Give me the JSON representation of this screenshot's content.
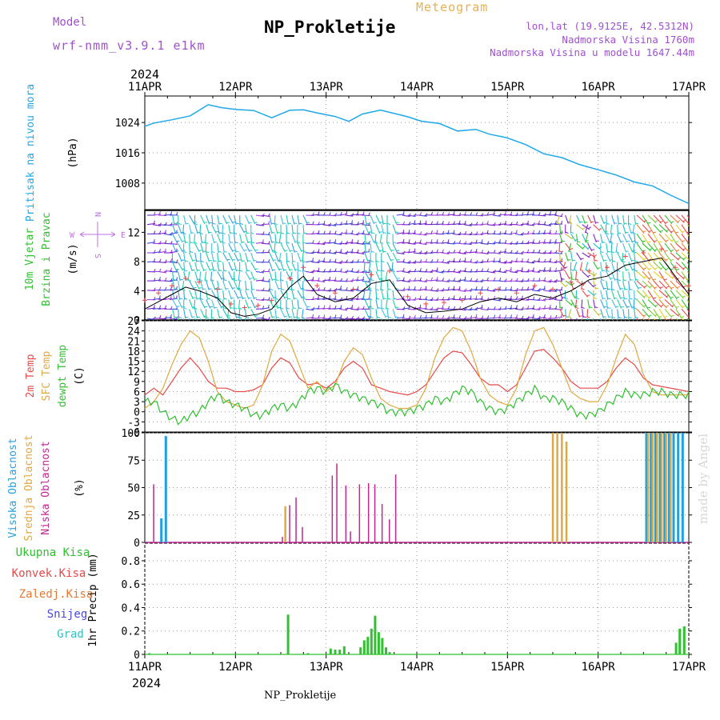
{
  "header": {
    "model_label": "Model",
    "model_name": "wrf-nmm_v3.9.1 e1km",
    "meteogram_label": "Meteogram",
    "station_title": "NP_Prokletije",
    "lonlat": "lon,lat (19.9125E, 42.5312N)",
    "elevation": "Nadmorska Visina 1760m",
    "model_elevation": "Nadmorska Visina u modelu 1647.44m"
  },
  "footer": {
    "station": "NP_Prokletije",
    "made_by": "made by Angel"
  },
  "colors": {
    "pressure": "#1fa8e8",
    "temp2m": "#e84848",
    "sfc_temp": "#e0a840",
    "dewpt": "#30c030",
    "high_cloud": "#20a0e0",
    "mid_cloud": "#e0a840",
    "low_cloud": "#c02890",
    "precip": "#30c030",
    "conv": "#e84848",
    "frz": "#e87830",
    "snow": "#4848e0",
    "grad": "#30c0c0",
    "wind_label": "#30c030",
    "compass": "#c070e0"
  },
  "chart_data": [
    {
      "type": "line",
      "panel": "pressure",
      "ylabel_left": "Pritisak na nivou mora",
      "ylabel_unit": "(hPa)",
      "yticks": [
        1008,
        1016,
        1024
      ],
      "ylim": [
        1001,
        1031
      ],
      "x_start": "2024-04-11T00:00",
      "x_end": "2024-04-17T00:00",
      "x": [
        0,
        0.1,
        0.3,
        0.5,
        0.7,
        0.85,
        1.0,
        1.2,
        1.4,
        1.6,
        1.75,
        1.9,
        2.1,
        2.25,
        2.4,
        2.6,
        2.8,
        2.9,
        3.05,
        3.25,
        3.45,
        3.65,
        3.8,
        4.0,
        4.2,
        4.4,
        4.6,
        4.8,
        5.0,
        5.2,
        5.4,
        5.6,
        5.8,
        6.0
      ],
      "y": [
        1023,
        1024,
        1024.5,
        1026,
        1028.5,
        1028,
        1027.5,
        1027,
        1025.5,
        1027,
        1027.5,
        1026.5,
        1025.5,
        1024.5,
        1026,
        1027.5,
        1026,
        1025.5,
        1024.5,
        1023.5,
        1022,
        1022,
        1021,
        1020,
        1018,
        1016,
        1014.5,
        1013,
        1011.5,
        1010,
        1008.5,
        1007,
        1005,
        1002.5
      ],
      "grid": true
    },
    {
      "type": "wind_barbs",
      "panel": "wind",
      "ylabel_left": "10m Vjetar Brzina i Pravac",
      "ylabel_unit": "(m/s)",
      "yticks": [
        0,
        4,
        8,
        12
      ],
      "ylim": [
        0,
        15
      ],
      "compass": {
        "n": "N",
        "s": "S",
        "e": "E",
        "w": "W"
      },
      "speed_x": [
        0,
        0.15,
        0.3,
        0.45,
        0.6,
        0.8,
        0.95,
        1.1,
        1.25,
        1.4,
        1.6,
        1.75,
        1.9,
        2.1,
        2.3,
        2.5,
        2.7,
        2.9,
        3.1,
        3.3,
        3.5,
        3.7,
        3.9,
        4.1,
        4.3,
        4.5,
        4.7,
        4.9,
        5.1,
        5.3,
        5.5,
        5.7,
        5.85,
        6.0
      ],
      "speed_y": [
        1.5,
        2.5,
        3.5,
        4.5,
        4.0,
        3.0,
        1.0,
        0.5,
        0.8,
        1.5,
        4.5,
        6.0,
        3.5,
        2.5,
        3.0,
        5.0,
        5.5,
        2.0,
        1.0,
        1.2,
        1.5,
        2.5,
        3.0,
        2.5,
        3.5,
        3.0,
        4.0,
        5.5,
        6.0,
        7.5,
        8.0,
        8.5,
        6.0,
        3.5
      ],
      "regimes": [
        {
          "from": 0.0,
          "to": 0.28,
          "style": "purple"
        },
        {
          "from": 0.28,
          "to": 1.2,
          "style": "teal"
        },
        {
          "from": 1.2,
          "to": 1.35,
          "style": "purple"
        },
        {
          "from": 1.35,
          "to": 1.75,
          "style": "teal"
        },
        {
          "from": 1.75,
          "to": 2.4,
          "style": "purple"
        },
        {
          "from": 2.4,
          "to": 2.75,
          "style": "teal"
        },
        {
          "from": 2.75,
          "to": 3.75,
          "style": "purple"
        },
        {
          "from": 3.75,
          "to": 4.55,
          "style": "purple"
        },
        {
          "from": 4.55,
          "to": 5.0,
          "style": "mixed"
        },
        {
          "from": 5.0,
          "to": 5.4,
          "style": "teal"
        },
        {
          "from": 5.4,
          "to": 6.0,
          "style": "warm"
        }
      ]
    },
    {
      "type": "line",
      "panel": "temperature",
      "ylabel_series": [
        "2m Temp",
        "SFC Temp",
        "dewpt Temp"
      ],
      "ylabel_unit": "(C)",
      "yticks": [
        -6,
        -3,
        0,
        3,
        6,
        9,
        12,
        15,
        18,
        21,
        24,
        27
      ],
      "ylim": [
        -6,
        27
      ],
      "x": [
        0,
        0.1,
        0.2,
        0.3,
        0.4,
        0.5,
        0.6,
        0.7,
        0.8,
        0.9,
        1.0,
        1.1,
        1.2,
        1.3,
        1.4,
        1.5,
        1.6,
        1.7,
        1.8,
        1.9,
        2.0,
        2.1,
        2.2,
        2.3,
        2.4,
        2.5,
        2.6,
        2.7,
        2.8,
        2.9,
        3.0,
        3.1,
        3.2,
        3.3,
        3.4,
        3.5,
        3.6,
        3.7,
        3.8,
        3.9,
        4.0,
        4.1,
        4.2,
        4.3,
        4.4,
        4.5,
        4.6,
        4.7,
        4.8,
        4.9,
        5.0,
        5.1,
        5.2,
        5.3,
        5.4,
        5.5,
        5.6,
        5.7,
        5.8,
        5.9,
        6.0
      ],
      "series": [
        {
          "name": "2m Temp",
          "values": [
            5,
            7,
            5,
            9,
            13,
            16,
            13,
            9,
            7,
            7,
            6,
            6,
            6.5,
            8,
            13,
            16,
            14.5,
            10,
            8,
            8.5,
            7,
            9,
            13,
            15,
            13,
            8,
            7,
            6,
            5.5,
            5,
            6,
            8,
            12,
            16,
            18,
            17.5,
            14,
            10,
            8,
            8,
            6,
            8,
            13,
            18,
            18.5,
            16,
            13,
            9,
            7,
            7,
            7,
            9,
            13,
            16,
            14,
            10,
            8,
            7.5,
            7,
            6.5,
            6
          ]
        },
        {
          "name": "SFC Temp",
          "values": [
            1,
            3,
            7,
            14,
            20,
            24,
            22,
            15,
            6,
            3,
            2,
            1,
            2,
            8,
            18,
            23,
            21,
            14,
            7,
            9,
            6,
            8,
            15,
            19,
            17,
            10,
            4,
            2,
            1,
            1,
            2,
            7,
            16,
            22,
            25,
            24,
            18,
            10,
            5,
            3,
            2,
            7,
            17,
            24,
            25,
            20,
            13,
            6,
            4,
            3,
            3,
            8,
            16,
            23,
            20,
            11,
            6,
            5,
            5,
            5,
            5
          ]
        },
        {
          "name": "dewpt Temp",
          "values": [
            3,
            3,
            0,
            -2,
            -3,
            -1,
            0,
            3,
            5,
            3,
            2,
            1,
            -1,
            -1,
            1,
            2,
            1,
            3,
            6,
            7,
            6,
            8,
            6,
            5,
            4,
            3,
            2,
            0,
            0,
            0,
            1,
            2,
            4,
            3,
            5,
            7,
            6,
            3,
            1,
            0,
            1,
            3,
            5,
            7,
            4,
            4,
            3,
            1,
            -1,
            -1,
            0,
            2,
            4,
            6,
            5,
            5,
            6,
            6,
            5,
            5,
            5
          ]
        }
      ],
      "grid": true
    },
    {
      "type": "bar",
      "panel": "cloud",
      "ylabel_series": [
        "Visoka Oblacnost",
        "Srednja Oblacnost",
        "Niska Oblacnost"
      ],
      "ylabel_unit": "(%)",
      "yticks": [
        0,
        25,
        50,
        75,
        100
      ],
      "ylim": [
        0,
        100
      ],
      "series": [
        {
          "name": "Visoka Oblacnost",
          "x": [
            0.2,
            0.25,
            5.55,
            5.6,
            5.65,
            5.7,
            5.75,
            5.8,
            5.85,
            5.9,
            5.95
          ],
          "values": [
            22,
            97,
            100,
            100,
            100,
            100,
            100,
            100,
            100,
            100,
            100
          ]
        },
        {
          "name": "Srednja Oblacnost",
          "x": [
            1.55,
            4.5,
            4.55,
            4.6,
            4.65,
            5.55,
            5.6,
            5.65,
            5.7,
            5.75,
            5.8
          ],
          "values": [
            33,
            100,
            100,
            100,
            92,
            100,
            100,
            100,
            100,
            100,
            100
          ]
        },
        {
          "name": "Niska Oblacnost",
          "x": [
            0.08,
            1.5,
            1.58,
            1.65,
            1.72,
            2.05,
            2.1,
            2.2,
            2.25,
            2.35,
            2.45,
            2.52,
            2.6,
            2.68,
            2.75
          ],
          "values": [
            53,
            5,
            34,
            41,
            14,
            61,
            72,
            52,
            10,
            53,
            54,
            53,
            35,
            21,
            62
          ]
        }
      ],
      "grid": true
    },
    {
      "type": "bar",
      "panel": "precip",
      "ylabel_series": [
        "Ukupna Kisa",
        "Konvek.Kisa",
        "Zaledj.Kisa",
        "Snijeg",
        "Grad"
      ],
      "ylabel_unit": "1hr Precip (mm)",
      "yticks": [
        0,
        0.2,
        0.4,
        0.6,
        0.8
      ],
      "ylim": [
        0,
        0.95
      ],
      "x": [
        0.05,
        1.58,
        1.8,
        2.05,
        2.1,
        2.15,
        2.2,
        2.38,
        2.42,
        2.46,
        2.5,
        2.54,
        2.58,
        2.62,
        2.66,
        2.7,
        5.86,
        5.9,
        5.95
      ],
      "values": [
        0.01,
        0.34,
        0.01,
        0.05,
        0.04,
        0.04,
        0.07,
        0.06,
        0.12,
        0.15,
        0.22,
        0.33,
        0.19,
        0.14,
        0.06,
        0.02,
        0.1,
        0.22,
        0.24
      ],
      "grid": true
    }
  ],
  "time_axis": {
    "year_top": "2024",
    "year_bottom": "2024",
    "dates": [
      "11APR",
      "12APR",
      "13APR",
      "14APR",
      "15APR",
      "16APR",
      "17APR"
    ]
  }
}
